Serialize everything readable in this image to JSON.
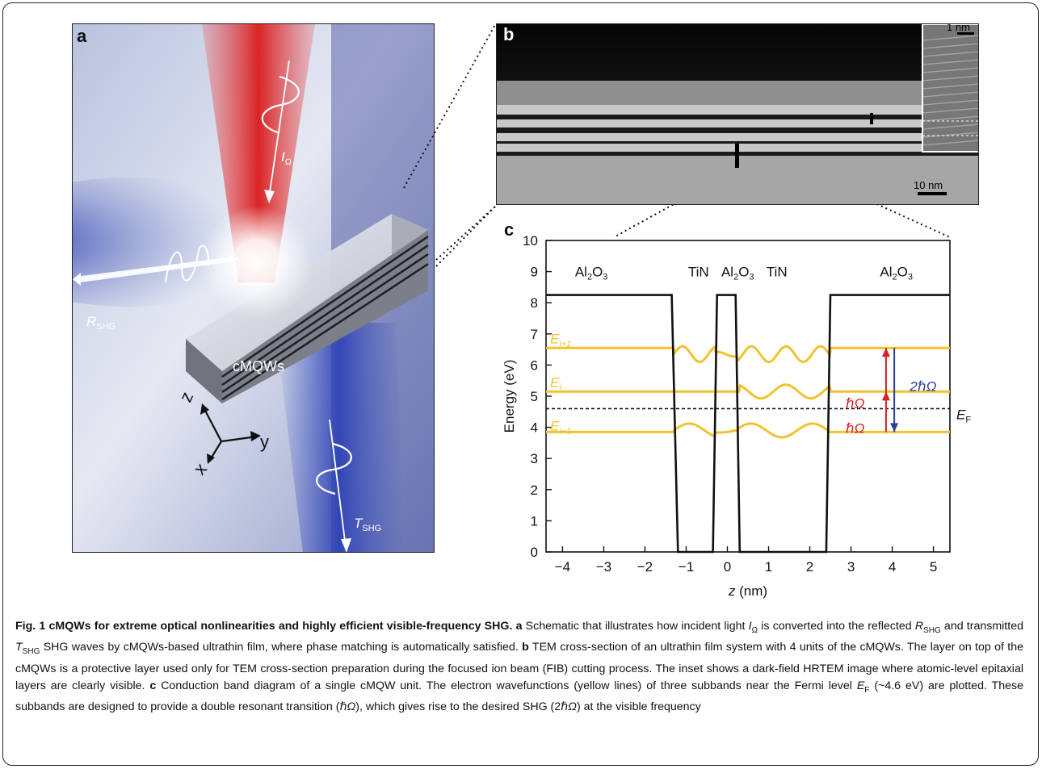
{
  "panel_a": {
    "label": "a",
    "material_label": "cMQWs",
    "incident_label": {
      "main": "I",
      "sub": "Ω"
    },
    "reflected_label": {
      "main": "R",
      "sub": "SHG"
    },
    "transmitted_label": {
      "main": "T",
      "sub": "SHG"
    },
    "axes": {
      "z": "z",
      "y": "y",
      "x": "x"
    }
  },
  "panel_b": {
    "label": "b",
    "inset_scale": "1 nm",
    "main_scale": "10 nm"
  },
  "panel_c": {
    "label": "c",
    "region_labels": [
      {
        "text": "Al",
        "sub1": "2",
        "text2": "O",
        "sub2": "3"
      },
      {
        "text": "TiN"
      },
      {
        "text": "Al",
        "sub1": "2",
        "text2": "O",
        "sub2": "3"
      },
      {
        "text": "TiN"
      },
      {
        "text": "Al",
        "sub1": "2",
        "text2": "O",
        "sub2": "3"
      }
    ],
    "subband_labels": [
      {
        "main": "E",
        "sub": "i+1"
      },
      {
        "main": "E",
        "sub": "i"
      },
      {
        "main": "E",
        "sub": "i−1"
      }
    ],
    "fermi_label": {
      "main": "E",
      "sub": "F"
    },
    "transition_labels": {
      "single": "ℏΩ",
      "double": "2ℏΩ"
    }
  },
  "chart_data": {
    "type": "line",
    "xlabel": {
      "italic": "z",
      "rest": " (nm)"
    },
    "ylabel": "Energy (eV)",
    "xlim": [
      -4.4,
      5.4
    ],
    "ylim": [
      0,
      10
    ],
    "xticks": [
      -4,
      -3,
      -2,
      -1,
      0,
      1,
      2,
      3,
      4,
      5
    ],
    "xtick_labels": [
      "−4",
      "−3",
      "−2",
      "−1",
      "0",
      "1",
      "2",
      "3",
      "4",
      "5"
    ],
    "yticks": [
      0,
      1,
      2,
      3,
      4,
      5,
      6,
      7,
      8,
      9,
      10
    ],
    "conduction_band": [
      [
        -4.4,
        8.25
      ],
      [
        -1.35,
        8.25
      ],
      [
        -1.2,
        0
      ],
      [
        -0.35,
        0
      ],
      [
        -0.25,
        8.25
      ],
      [
        0.2,
        8.25
      ],
      [
        0.3,
        0
      ],
      [
        2.4,
        0
      ],
      [
        2.5,
        8.25
      ],
      [
        5.4,
        8.25
      ]
    ],
    "fermi_level": 4.6,
    "subbands": [
      {
        "name": "E_i+1",
        "level": 6.55
      },
      {
        "name": "E_i",
        "level": 5.15
      },
      {
        "name": "E_i-1",
        "level": 3.85
      }
    ],
    "transitions": [
      {
        "from": 3.85,
        "to": 5.15,
        "x": 3.85,
        "color": "#d42020",
        "label": "ℏΩ"
      },
      {
        "from": 5.15,
        "to": 6.55,
        "x": 3.85,
        "color": "#d42020",
        "label": "ℏΩ"
      },
      {
        "from": 6.55,
        "to": 3.85,
        "x": 4.05,
        "color": "#2a3f9a",
        "label": "2ℏΩ"
      }
    ],
    "colors": {
      "band": "#111111",
      "wavefunction": "#f2c22e",
      "fermi": "#111111"
    }
  },
  "caption": {
    "fig_label": "Fig. 1",
    "title": "cMQWs for extreme optical nonlinearities and highly efficient visible-frequency SHG.",
    "a_label": "a",
    "a_text_1": "Schematic that illustrates how incident light ",
    "a_I": "I",
    "a_I_sub": "Ω",
    "a_text_2": " is converted into the reflected ",
    "a_R": "R",
    "a_R_sub": "SHG",
    "a_text_3": " and transmitted ",
    "a_T": "T",
    "a_T_sub": "SHG",
    "a_text_4": " SHG waves by cMQWs-based ultrathin film, where phase matching is automatically satisfied.",
    "b_label": "b",
    "b_text": "TEM cross-section of an ultrathin film system with 4 units of the cMQWs. The layer on top of the cMQWs is a protective layer used only for TEM cross-section preparation during the focused ion beam (FIB) cutting process. The inset shows a dark-field HRTEM image where atomic-level epitaxial layers are clearly visible.",
    "c_label": "c",
    "c_text_1": "Conduction band diagram of a single cMQW unit. The electron wavefunctions (yellow lines) of three subbands near the Fermi level ",
    "c_E": "E",
    "c_E_sub": "F",
    "c_text_2": " (~4.6 eV) are plotted. These subbands are designed to provide a double resonant transition (",
    "c_hbar": "ℏΩ",
    "c_text_3": "), which gives rise to the desired SHG (2",
    "c_hbar2": "ℏΩ",
    "c_text_4": ") at the visible frequency"
  }
}
